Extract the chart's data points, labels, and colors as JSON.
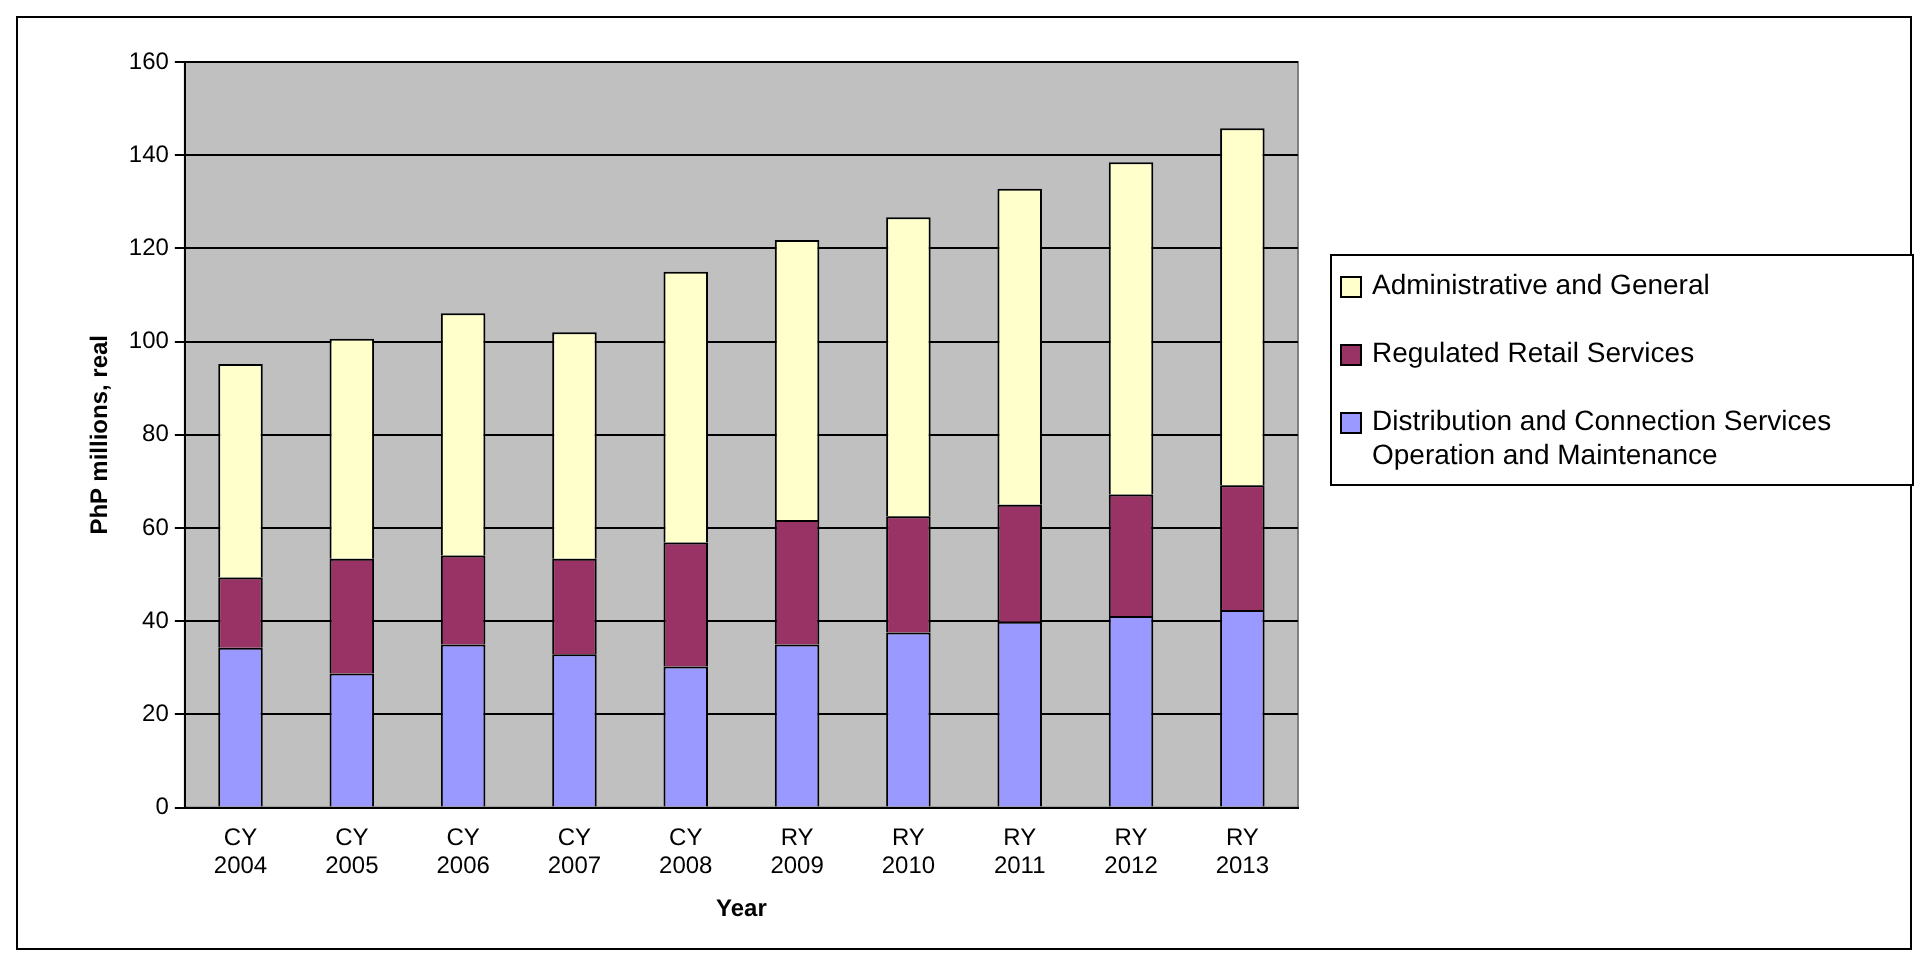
{
  "chart_data": {
    "type": "bar",
    "stacked": true,
    "xlabel": "Year",
    "ylabel": "PhP millions, real",
    "categories": [
      "CY 2004",
      "CY 2005",
      "CY 2006",
      "CY 2007",
      "CY 2008",
      "RY 2009",
      "RY 2010",
      "RY 2011",
      "RY 2012",
      "RY 2013"
    ],
    "series": [
      {
        "name": "Distribution and Connection Services Operation and Maintenance",
        "color": "#9999ff",
        "values": [
          34.3,
          28.8,
          35.0,
          32.9,
          30.3,
          35.0,
          37.6,
          39.9,
          41.1,
          42.4
        ]
      },
      {
        "name": "Regulated Retail Services",
        "color": "#993366",
        "values": [
          15.1,
          24.6,
          19.1,
          20.5,
          26.6,
          26.7,
          24.9,
          25.1,
          26.1,
          26.8
        ]
      },
      {
        "name": "Administrative and General",
        "color": "#ffffcc",
        "values": [
          45.8,
          47.2,
          52.0,
          48.6,
          58.1,
          60.1,
          64.2,
          67.8,
          71.3,
          76.6
        ]
      }
    ],
    "ylim": [
      0,
      160
    ],
    "yticks": [
      0,
      20,
      40,
      60,
      80,
      100,
      120,
      140,
      160
    ],
    "grid": "y",
    "legend": "right"
  }
}
